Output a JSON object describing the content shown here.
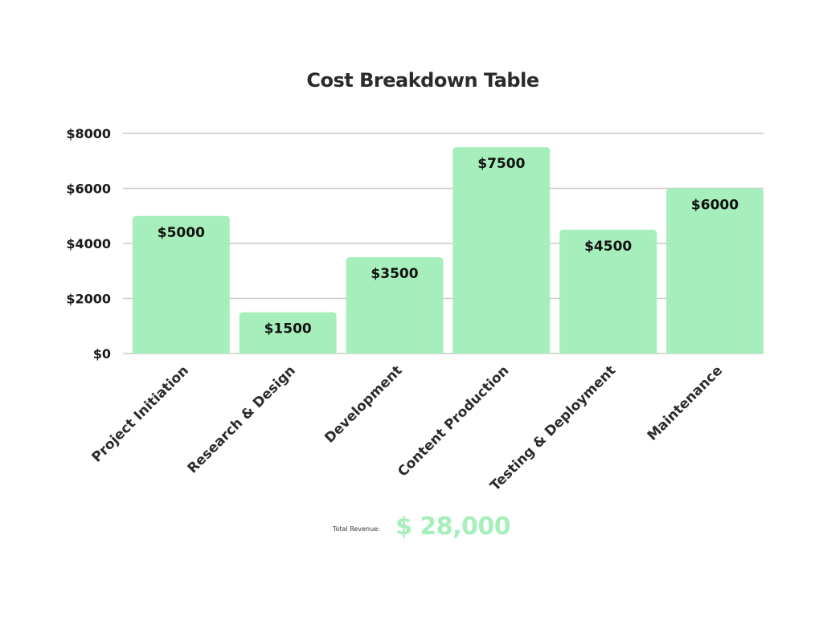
{
  "chart_data": {
    "type": "bar",
    "title": "Cost Breakdown Table",
    "categories": [
      "Project Initiation",
      "Research & Design",
      "Development",
      "Content Production",
      "Testing & Deployment",
      "Maintenance"
    ],
    "values": [
      5000,
      1500,
      3500,
      7500,
      4500,
      6000
    ],
    "data_labels": [
      "$5000",
      "$1500",
      "$3500",
      "$7500",
      "$4500",
      "$6000"
    ],
    "y_ticks": [
      0,
      2000,
      4000,
      6000,
      8000
    ],
    "y_tick_labels": [
      "$0",
      "$2000",
      "$4000",
      "$6000",
      "$8000"
    ],
    "ylim": [
      0,
      8000
    ],
    "xlabel": "",
    "ylabel": "",
    "grid": true,
    "bar_color": "#a6efbd",
    "grid_color": "#cccccc"
  },
  "summary": {
    "label": "Total Revenue:",
    "value": "$ 28,000",
    "value_color": "#a6efbd"
  }
}
